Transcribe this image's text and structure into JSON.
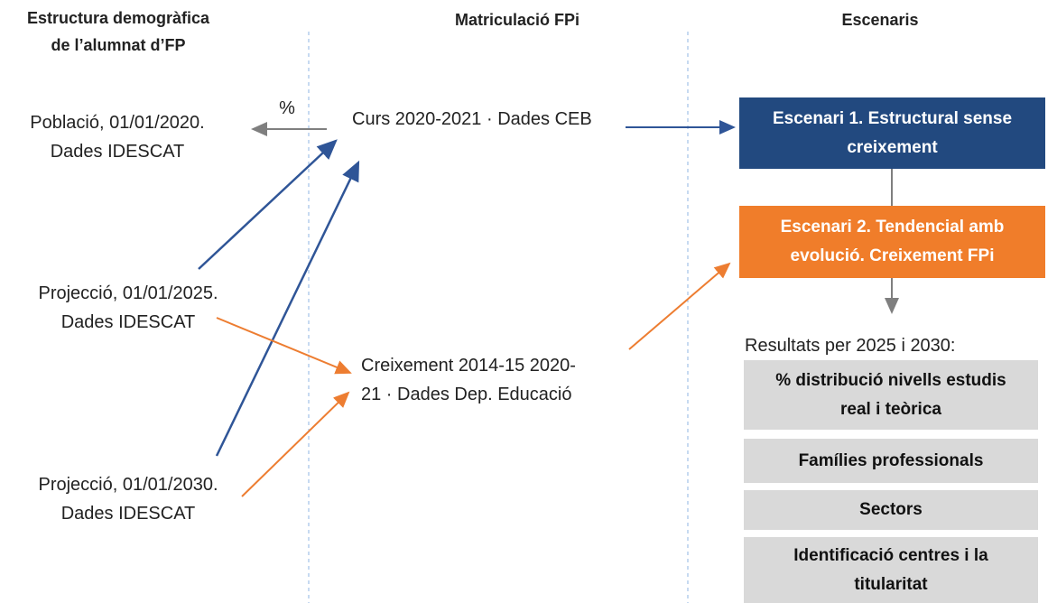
{
  "headers": [
    [
      "Estructura demogràfica",
      "de l’alumnat d’FP"
    ],
    [
      "Matriculació FPi"
    ],
    [
      "Escenaris"
    ]
  ],
  "arrow_label": "%",
  "sources": [
    [
      "Població, 01/01/2020.",
      "Dades IDESCAT"
    ],
    [
      "Projecció, 01/01/2025.",
      "Dades IDESCAT"
    ],
    [
      "Projecció, 01/01/2030.",
      "Dades IDESCAT"
    ]
  ],
  "enrolment": [
    [
      "Curs 2020-2021 · Dades CEB"
    ],
    [
      "Creixement 2014-15 2020-",
      "21 · Dades Dep. Educació"
    ]
  ],
  "scenarios": [
    [
      "Escenari 1. Estructural sense",
      "creixement"
    ],
    [
      "Escenari 2. Tendencial amb",
      "evolució. Creixement FPi"
    ]
  ],
  "results_title": "Resultats per 2025 i 2030:",
  "results": [
    [
      "% distribució nivells estudis",
      "real i teòrica"
    ],
    [
      "Famílies professionals"
    ],
    [
      "Sectors"
    ],
    [
      "Identificació centres i la",
      "titularitat"
    ]
  ]
}
